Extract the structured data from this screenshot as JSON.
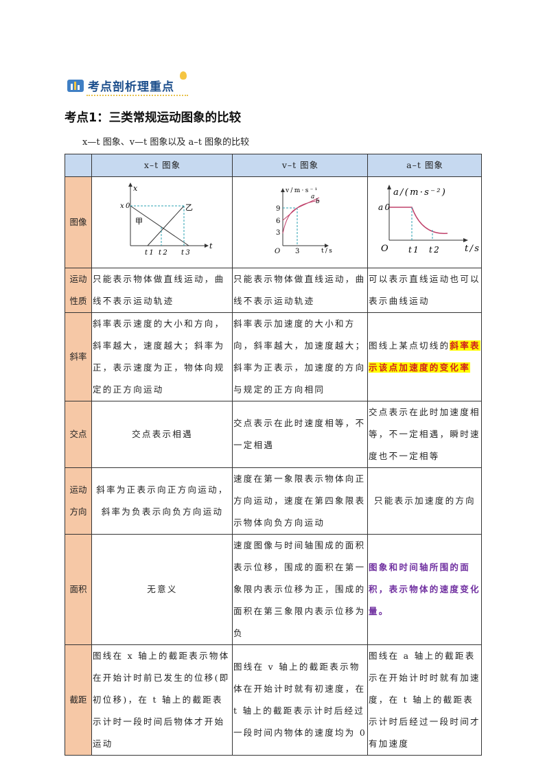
{
  "banner": {
    "title": "考点剖析理重点"
  },
  "heading": "考点1：三类常规运动图象的比较",
  "subtitle": "x—t 图象、v—t 图象以及 a–t 图象的比较",
  "table": {
    "headers": [
      "",
      "x–t 图象",
      "v–t 图象",
      "a–t 图象"
    ],
    "image_row_label": "图像",
    "graphs": {
      "xt": {
        "y_axis": "x",
        "x_axis": "t",
        "y_tick": "x0",
        "x_ticks": [
          "t1",
          "t2",
          "t3"
        ],
        "line_labels": [
          "甲",
          "乙"
        ]
      },
      "vt": {
        "y_axis": "v/m·s⁻¹",
        "x_axis": "t/s",
        "y_ticks": [
          "3",
          "6",
          "9"
        ],
        "x_ticks": [
          "O",
          "3"
        ],
        "curve_labels": [
          "a",
          "b"
        ]
      },
      "at": {
        "y_axis": "a/(m·s⁻²)",
        "x_axis": "t/s",
        "y_tick": "a0",
        "x_ticks": [
          "O",
          "t1",
          "t2"
        ]
      },
      "line_color": "#c0406a",
      "guide_color": "#2aa0b0"
    },
    "rows": [
      {
        "label": "运动性质",
        "cells": [
          "只能表示物体做直线运动，曲线不表示运动轨迹",
          "只能表示物体做直线运动，曲线不表示运动轨迹",
          "可以表示直线运动也可以表示曲线运动"
        ]
      },
      {
        "label": "斜率",
        "cells": [
          "斜率表示速度的大小和方向，斜率越大，速度越大；斜率为正，表示速度为正，物体向规定的正方向运动",
          "斜率表示加速度的大小和方向，斜率越大，加速度越大；斜率为正表示，加速度的方向与规定的正方向相同"
        ],
        "cell3_plain": "图线上某点切线的",
        "cell3_highlight": "斜率表示该点加速度的变化率"
      },
      {
        "label": "交点",
        "cells": [
          "交点表示相遇",
          "交点表示在此时速度相等，不一定相遇",
          "交点表示在此时加速度相等，不一定相遇，瞬时速度也不一定相等"
        ]
      },
      {
        "label": "运动方向",
        "cells": [
          "斜率为正表示向正方向运动，斜率为负表示向负方向运动",
          "速度在第一象限表示物体向正方向运动，速度在第四象限表示物体向负方向运动",
          "只能表示加速度的方向"
        ]
      },
      {
        "label": "面积",
        "cells": [
          "无意义",
          "速度图像与时间轴围成的面积表示位移，围成的面积在第一象限内表示位移为正，围成的面积在第三象限内表示位移为负",
          "图象和时间轴所围的面积，表示物体的速度变化量。"
        ]
      },
      {
        "label": "截距",
        "cells": [
          "图线在 x 轴上的截距表示物体在开始计时前已发生的位移(即初位移)，在 t 轴上的截距表示计时一段时间后物体才开始运动",
          "图线在 v 轴上的截距表示物体在开始计时就有初速度，在 t 轴上的截距表示计时后经过一段时间内物体的速度均为 0",
          "图线在 a 轴上的截距表示在开始计时时就有加速度，在 t 轴上的截距表示计时后经过一段时间才有加速度"
        ]
      }
    ]
  }
}
